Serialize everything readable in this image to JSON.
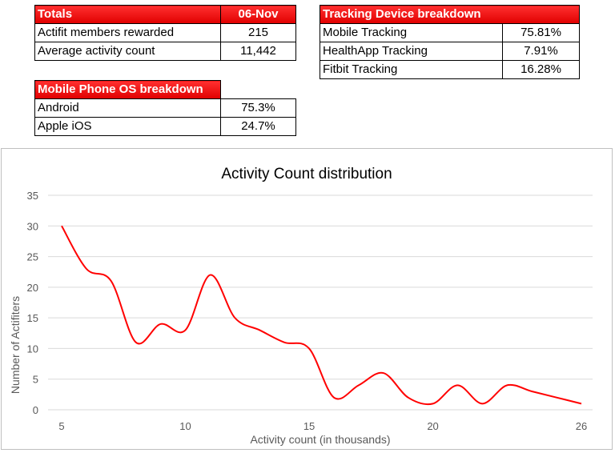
{
  "totals": {
    "header_label": "Totals",
    "header_date": "06-Nov",
    "rows": [
      {
        "label": "Actifit members rewarded",
        "value": "215"
      },
      {
        "label": "Average activity count",
        "value": "11,442"
      }
    ]
  },
  "os_breakdown": {
    "header_label": "Mobile Phone OS breakdown",
    "rows": [
      {
        "label": "Android",
        "value": "75.3%"
      },
      {
        "label": "Apple iOS",
        "value": "24.7%"
      }
    ]
  },
  "device_breakdown": {
    "header_label": "Tracking Device breakdown",
    "rows": [
      {
        "label": "Mobile Tracking",
        "value": "75.81%"
      },
      {
        "label": "HealthApp Tracking",
        "value": "7.91%"
      },
      {
        "label": "Fitbit Tracking",
        "value": "16.28%"
      }
    ]
  },
  "colors": {
    "header_red": "#e00000",
    "line_red": "#ff0000",
    "grid": "#d9d9d9",
    "axis_text": "#595959"
  },
  "chart_data": {
    "type": "line",
    "title": "Activity Count distribution",
    "xlabel": "Activity count (in thousands)",
    "ylabel": "Number of Actifiters",
    "xlim": [
      5,
      26
    ],
    "ylim": [
      0,
      35
    ],
    "x_ticks": [
      5,
      10,
      15,
      20,
      26
    ],
    "y_ticks": [
      0,
      5,
      10,
      15,
      20,
      25,
      30,
      35
    ],
    "grid": true,
    "smooth": true,
    "series": [
      {
        "name": "Actifiters",
        "x": [
          5,
          6,
          7,
          8,
          9,
          10,
          11,
          12,
          13,
          14,
          15,
          16,
          17,
          18,
          19,
          20,
          21,
          22,
          23,
          24,
          25,
          26
        ],
        "values": [
          30,
          23,
          21,
          11,
          14,
          13,
          22,
          15,
          13,
          11,
          10,
          2,
          4,
          6,
          2,
          1,
          4,
          1,
          4,
          3,
          2,
          1
        ]
      }
    ]
  }
}
